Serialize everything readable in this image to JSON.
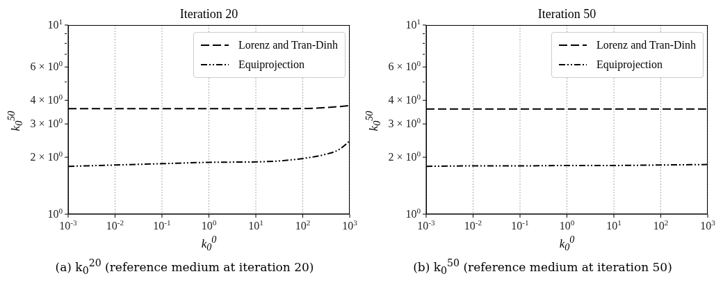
{
  "chart_data": [
    {
      "type": "line",
      "title": "Iteration 20",
      "xlabel": "k$_{0}$$^{0}$",
      "ylabel": "k$_{0}$$^{50}$",
      "log": "xy",
      "grid": "x",
      "legend": "top right",
      "marker": "none",
      "xlim": [
        0.001,
        1000
      ],
      "ylim": [
        1,
        10
      ],
      "xticks": [
        {
          "value": 0.001,
          "label": "10$^{-3}$"
        },
        {
          "value": 0.01,
          "label": "10$^{-2}$"
        },
        {
          "value": 0.1,
          "label": "10$^{-1}$"
        },
        {
          "value": 1,
          "label": "10$^{0}$"
        },
        {
          "value": 10,
          "label": "10$^{1}$"
        },
        {
          "value": 100,
          "label": "10$^{2}$"
        },
        {
          "value": 1000,
          "label": "10$^{3}$"
        }
      ],
      "yticks": [
        {
          "value": 1,
          "label": "10$^{0}$"
        },
        {
          "value": 2,
          "label": "2 × 10$^{0}$"
        },
        {
          "value": 3,
          "label": "3 × 10$^{0}$"
        },
        {
          "value": 4,
          "label": "4 × 10$^{0}$"
        },
        {
          "value": 5,
          "label": null
        },
        {
          "value": 6,
          "label": "6 × 10$^{0}$"
        },
        {
          "value": 7,
          "label": null
        },
        {
          "value": 8,
          "label": null
        },
        {
          "value": 9,
          "label": null
        },
        {
          "value": 10,
          "label": "10$^{1}$"
        }
      ],
      "series": [
        {
          "name": "Lorenz and Tran-Dinh",
          "color": "#000000",
          "line_style": "dashed",
          "x": [
            0.001,
            0.01,
            0.1,
            1,
            10,
            100,
            300,
            1000
          ],
          "values": [
            3.61,
            3.61,
            3.61,
            3.61,
            3.61,
            3.62,
            3.66,
            3.75
          ]
        },
        {
          "name": "Equiprojection",
          "color": "#000000",
          "line_style": "dashdotdot",
          "x": [
            0.001,
            0.01,
            0.1,
            1,
            10,
            100,
            300,
            600,
            1000
          ],
          "values": [
            1.79,
            1.82,
            1.85,
            1.88,
            1.89,
            1.97,
            2.07,
            2.2,
            2.44
          ]
        }
      ],
      "annotations": [
        "(a) k$_{0}$$^{20}$ (reference medium at iteration 20)"
      ]
    },
    {
      "type": "line",
      "title": "Iteration 50",
      "xlabel": "k$_{0}$$^{0}$",
      "ylabel": "k$_{0}$$^{50}$",
      "log": "xy",
      "grid": "x",
      "legend": "top right",
      "marker": "none",
      "xlim": [
        0.001,
        1000
      ],
      "ylim": [
        1,
        10
      ],
      "xticks": [
        {
          "value": 0.001,
          "label": "10$^{-3}$"
        },
        {
          "value": 0.01,
          "label": "10$^{-2}$"
        },
        {
          "value": 0.1,
          "label": "10$^{-1}$"
        },
        {
          "value": 1,
          "label": "10$^{0}$"
        },
        {
          "value": 10,
          "label": "10$^{1}$"
        },
        {
          "value": 100,
          "label": "10$^{2}$"
        },
        {
          "value": 1000,
          "label": "10$^{3}$"
        }
      ],
      "yticks": [
        {
          "value": 1,
          "label": "10$^{0}$"
        },
        {
          "value": 2,
          "label": "2 × 10$^{0}$"
        },
        {
          "value": 3,
          "label": "3 × 10$^{0}$"
        },
        {
          "value": 4,
          "label": "4 × 10$^{0}$"
        },
        {
          "value": 5,
          "label": null
        },
        {
          "value": 6,
          "label": "6 × 10$^{0}$"
        },
        {
          "value": 7,
          "label": null
        },
        {
          "value": 8,
          "label": null
        },
        {
          "value": 9,
          "label": null
        },
        {
          "value": 10,
          "label": "10$^{1}$"
        }
      ],
      "series": [
        {
          "name": "Lorenz and Tran-Dinh",
          "color": "#000000",
          "line_style": "dashed",
          "x": [
            0.001,
            0.01,
            0.1,
            1,
            10,
            100,
            1000
          ],
          "values": [
            3.6,
            3.6,
            3.6,
            3.6,
            3.6,
            3.6,
            3.6
          ]
        },
        {
          "name": "Equiprojection",
          "color": "#000000",
          "line_style": "dashdotdot",
          "x": [
            0.001,
            0.01,
            0.1,
            1,
            10,
            100,
            1000
          ],
          "values": [
            1.79,
            1.8,
            1.8,
            1.81,
            1.81,
            1.82,
            1.83
          ]
        }
      ],
      "annotations": [
        "(b) k$_{0}$$^{50}$ (reference medium at iteration 50)"
      ]
    }
  ]
}
